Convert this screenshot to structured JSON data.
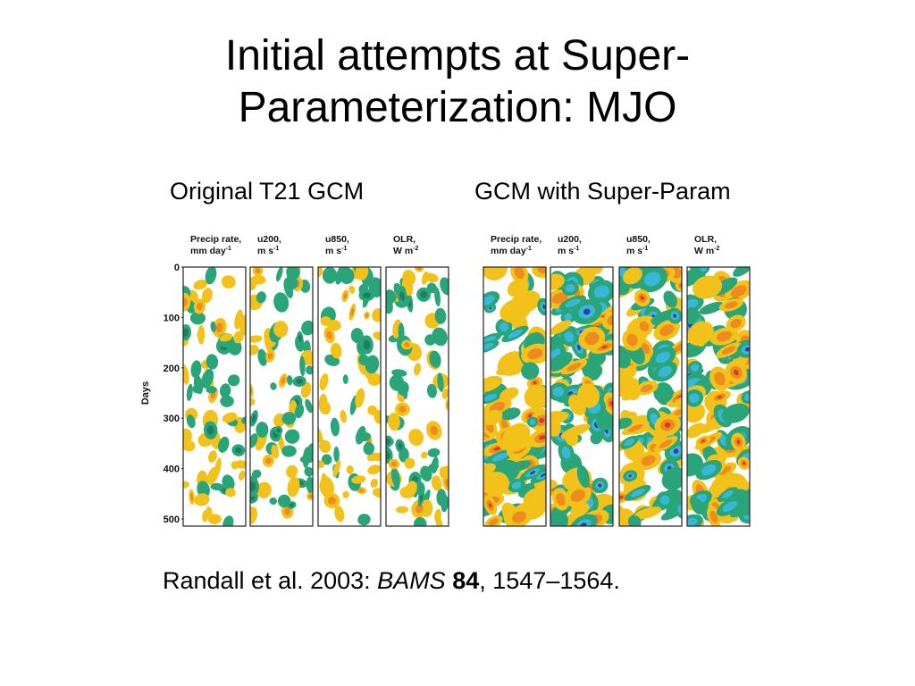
{
  "slide": {
    "title_line1": "Initial attempts at Super-",
    "title_line2": "Parameterization:  MJO",
    "subtitle_left": "Original T21 GCM",
    "subtitle_right": "GCM with Super-Param"
  },
  "figure": {
    "y_axis_label": "Days",
    "y_ticks": [
      "0",
      "100",
      "200",
      "300",
      "400",
      "500"
    ],
    "panels": [
      {
        "id": "p1",
        "group": "original",
        "line1": "Precip rate,",
        "line2": "mm day",
        "sup": "-1",
        "intensity": 0.45
      },
      {
        "id": "p2",
        "group": "original",
        "line1": "u200,",
        "line2": "m s",
        "sup": "-1",
        "intensity": 0.55
      },
      {
        "id": "p3",
        "group": "original",
        "line1": "u850,",
        "line2": "m s",
        "sup": "-1",
        "intensity": 0.4
      },
      {
        "id": "p4",
        "group": "original",
        "line1": "OLR,",
        "line2": "W m",
        "sup": "-2",
        "intensity": 0.6
      },
      {
        "id": "p5",
        "group": "superparam",
        "line1": "Precip rate,",
        "line2": "mm day",
        "sup": "-1",
        "intensity": 0.8
      },
      {
        "id": "p6",
        "group": "superparam",
        "line1": "u200,",
        "line2": "m s",
        "sup": "-1",
        "intensity": 1.0
      },
      {
        "id": "p7",
        "group": "superparam",
        "line1": "u850,",
        "line2": "m s",
        "sup": "-1",
        "intensity": 0.9
      },
      {
        "id": "p8",
        "group": "superparam",
        "line1": "OLR,",
        "line2": "W m",
        "sup": "-2",
        "intensity": 0.95
      }
    ],
    "palette": {
      "green": "#2aa57a",
      "darkgreen": "#1c7f64",
      "cyan": "#38b8d9",
      "blue": "#3a3aa8",
      "yellow": "#f2c21a",
      "orange": "#ef8a1f",
      "red": "#d83a2a",
      "frame": "#222222"
    }
  },
  "citation": {
    "prefix": "Randall et al. 2003: ",
    "journal": "BAMS",
    "volume": "84",
    "pages": ", 1547–1564."
  }
}
